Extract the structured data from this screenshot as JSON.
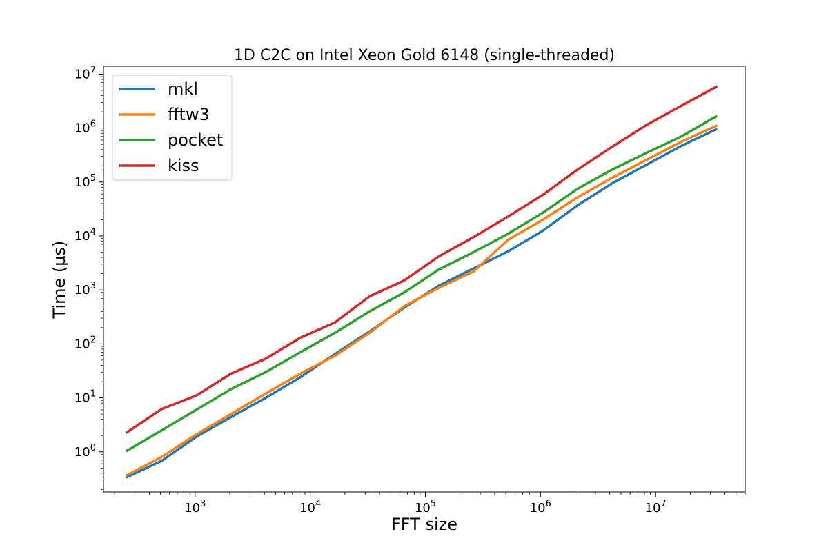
{
  "chart_data": {
    "type": "line",
    "title": "1D C2C on Intel Xeon Gold 6148 (single-threaded)",
    "xlabel": "FFT size",
    "ylabel": "Time (µs)",
    "xscale": "log",
    "yscale": "log",
    "xlim": [
      160,
      60000000
    ],
    "ylim": [
      0.18,
      14000000
    ],
    "xticks": [
      {
        "value": 1000,
        "base": "10",
        "exp": "3"
      },
      {
        "value": 10000,
        "base": "10",
        "exp": "4"
      },
      {
        "value": 100000,
        "base": "10",
        "exp": "5"
      },
      {
        "value": 1000000,
        "base": "10",
        "exp": "6"
      },
      {
        "value": 10000000,
        "base": "10",
        "exp": "7"
      }
    ],
    "yticks": [
      {
        "value": 1,
        "base": "10",
        "exp": "0"
      },
      {
        "value": 10,
        "base": "10",
        "exp": "1"
      },
      {
        "value": 100,
        "base": "10",
        "exp": "2"
      },
      {
        "value": 1000,
        "base": "10",
        "exp": "3"
      },
      {
        "value": 10000,
        "base": "10",
        "exp": "4"
      },
      {
        "value": 100000,
        "base": "10",
        "exp": "5"
      },
      {
        "value": 1000000,
        "base": "10",
        "exp": "6"
      },
      {
        "value": 10000000,
        "base": "10",
        "exp": "7"
      }
    ],
    "legend_position": "top-left",
    "x": [
      256,
      512,
      1024,
      2048,
      4096,
      8192,
      16384,
      32768,
      65536,
      131072,
      262144,
      524288,
      1048576,
      2097152,
      4194304,
      8388608,
      16777216,
      33554432
    ],
    "series": [
      {
        "name": "mkl",
        "color": "#1f77b4",
        "values": [
          0.34,
          0.68,
          1.9,
          4.4,
          10,
          24,
          65,
          170,
          470,
          1200,
          2500,
          5200,
          12500,
          37000,
          95000,
          210000,
          470000,
          950000
        ]
      },
      {
        "name": "fftw3",
        "color": "#ff7f0e",
        "values": [
          0.37,
          0.8,
          2.1,
          5,
          12,
          28,
          60,
          160,
          500,
          1100,
          2200,
          8500,
          20000,
          52000,
          120000,
          260000,
          560000,
          1100000
        ]
      },
      {
        "name": "pocket",
        "color": "#2ca02c",
        "values": [
          1.05,
          2.5,
          6,
          14.5,
          30,
          70,
          160,
          400,
          900,
          2400,
          5000,
          11000,
          27000,
          75000,
          170000,
          350000,
          700000,
          1650000
        ]
      },
      {
        "name": "kiss",
        "color": "#d62728",
        "values": [
          2.3,
          6.2,
          11,
          28,
          53,
          130,
          250,
          760,
          1500,
          4200,
          9500,
          23000,
          58000,
          170000,
          450000,
          1150000,
          2600000,
          5800000
        ]
      }
    ]
  }
}
